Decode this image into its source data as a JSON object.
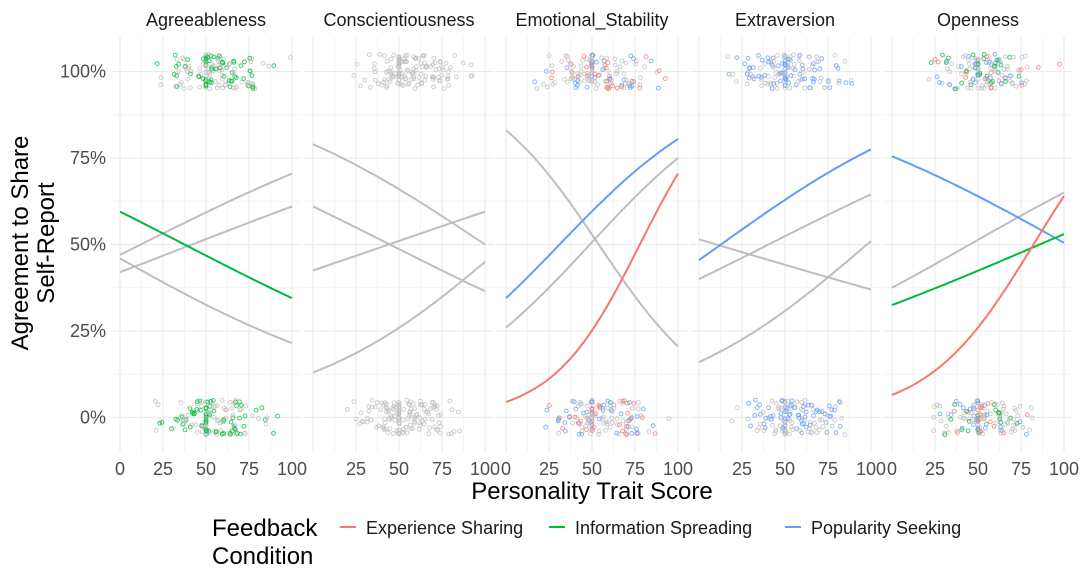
{
  "chart_data": {
    "type": "faceted-logistic-scatter",
    "xlabel": "Personality Trait Score",
    "ylabel_lines": [
      "Agreement to Share",
      "Self-Report"
    ],
    "y_ticks": [
      {
        "value": 0,
        "label": "0%"
      },
      {
        "value": 0.25,
        "label": "25%"
      },
      {
        "value": 0.5,
        "label": "50%"
      },
      {
        "value": 0.75,
        "label": "75%"
      },
      {
        "value": 1,
        "label": "100%"
      }
    ],
    "ylim": [
      -0.1,
      1.1
    ],
    "xlim": [
      0,
      100
    ],
    "grid": true,
    "legend": {
      "position": "bottom",
      "title_lines": [
        "Feedback",
        "Condition"
      ],
      "entries": [
        {
          "name": "Experience Sharing",
          "color": "#F8766D"
        },
        {
          "name": "Information Spreading",
          "color": "#00BA38"
        },
        {
          "name": "Popularity Seeking",
          "color": "#619CFF"
        }
      ]
    },
    "colors": {
      "Experience Sharing": "#F8766D",
      "Information Spreading": "#00BA38",
      "Popularity Seeking": "#619CFF",
      "Other": "#BEBEBE"
    },
    "facets": [
      {
        "name": "Agreeableness",
        "x_ticks": [
          {
            "value": 0,
            "label": "0"
          },
          {
            "value": 25,
            "label": "25"
          },
          {
            "value": 50,
            "label": "50"
          },
          {
            "value": 75,
            "label": "75"
          },
          {
            "value": 100,
            "label": "100"
          }
        ],
        "x_range_points": [
          20,
          100
        ],
        "points_colored": [
          "Information Spreading"
        ],
        "curves": [
          {
            "condition": "Other",
            "y0": 0.47,
            "y100": 0.705,
            "x_start": 0,
            "x_end": 100
          },
          {
            "condition": "Other",
            "y0": 0.42,
            "y100": 0.61,
            "x_start": 0,
            "x_end": 100
          },
          {
            "condition": "Other",
            "y0": 0.46,
            "y100": 0.215,
            "x_start": 0,
            "x_end": 100
          },
          {
            "condition": "Information Spreading",
            "y0": 0.595,
            "y100": 0.345,
            "x_start": 0,
            "x_end": 100
          }
        ]
      },
      {
        "name": "Conscientiousness",
        "x_ticks": [
          {
            "value": 25,
            "label": "25"
          },
          {
            "value": 50,
            "label": "50"
          },
          {
            "value": 75,
            "label": "75"
          },
          {
            "value": 100,
            "label": "100"
          }
        ],
        "x_range_points": [
          20,
          100
        ],
        "points_colored": [],
        "curves": [
          {
            "condition": "Other",
            "y0": 0.79,
            "y100": 0.5,
            "x_start": 0,
            "x_end": 100
          },
          {
            "condition": "Other",
            "y0": 0.61,
            "y100": 0.365,
            "x_start": 0,
            "x_end": 100
          },
          {
            "condition": "Other",
            "y0": 0.425,
            "y100": 0.595,
            "x_start": 0,
            "x_end": 100
          },
          {
            "condition": "Other",
            "y0": 0.13,
            "y100": 0.45,
            "x_start": 0,
            "x_end": 100
          }
        ]
      },
      {
        "name": "Emotional_Stability",
        "x_ticks": [
          {
            "value": 0,
            "label": "0"
          },
          {
            "value": 25,
            "label": "25"
          },
          {
            "value": 50,
            "label": "50"
          },
          {
            "value": 75,
            "label": "75"
          },
          {
            "value": 100,
            "label": "100"
          }
        ],
        "x_range_points": [
          5,
          100
        ],
        "points_colored": [
          "Experience Sharing",
          "Popularity Seeking"
        ],
        "curves": [
          {
            "condition": "Other",
            "y0": 0.83,
            "y100": 0.205,
            "x_start": 0,
            "x_end": 100
          },
          {
            "condition": "Other",
            "y0": 0.26,
            "y100": 0.75,
            "x_start": 0,
            "x_end": 100
          },
          {
            "condition": "Popularity Seeking",
            "y0": 0.345,
            "y100": 0.805,
            "x_start": 0,
            "x_end": 100
          },
          {
            "condition": "Experience Sharing",
            "y0": 0.045,
            "y100": 0.705,
            "x_start": 0,
            "x_end": 100
          }
        ]
      },
      {
        "name": "Extraversion",
        "x_ticks": [
          {
            "value": 25,
            "label": "25"
          },
          {
            "value": 50,
            "label": "50"
          },
          {
            "value": 75,
            "label": "75"
          },
          {
            "value": 100,
            "label": "100"
          }
        ],
        "x_range_points": [
          5,
          90
        ],
        "points_colored": [
          "Popularity Seeking"
        ],
        "curves": [
          {
            "condition": "Other",
            "y0": 0.515,
            "y100": 0.37,
            "x_start": 0,
            "x_end": 100
          },
          {
            "condition": "Other",
            "y0": 0.4,
            "y100": 0.645,
            "x_start": 0,
            "x_end": 100
          },
          {
            "condition": "Other",
            "y0": 0.16,
            "y100": 0.51,
            "x_start": 0,
            "x_end": 100
          },
          {
            "condition": "Popularity Seeking",
            "y0": 0.455,
            "y100": 0.775,
            "x_start": 0,
            "x_end": 100
          }
        ]
      },
      {
        "name": "Openness",
        "x_ticks": [
          {
            "value": 0,
            "label": "0"
          },
          {
            "value": 25,
            "label": "25"
          },
          {
            "value": 50,
            "label": "50"
          },
          {
            "value": 75,
            "label": "75"
          },
          {
            "value": 100,
            "label": "100"
          }
        ],
        "x_range_points": [
          20,
          100
        ],
        "points_colored": [
          "Experience Sharing",
          "Information Spreading",
          "Popularity Seeking"
        ],
        "curves": [
          {
            "condition": "Popularity Seeking",
            "y0": 0.755,
            "y100": 0.505,
            "x_start": 0,
            "x_end": 100
          },
          {
            "condition": "Other",
            "y0": 0.375,
            "y100": 0.65,
            "x_start": 0,
            "x_end": 100
          },
          {
            "condition": "Information Spreading",
            "y0": 0.325,
            "y100": 0.53,
            "x_start": 0,
            "x_end": 100
          },
          {
            "condition": "Experience Sharing",
            "y0": 0.065,
            "y100": 0.64,
            "x_start": 0,
            "x_end": 100
          }
        ]
      }
    ]
  }
}
